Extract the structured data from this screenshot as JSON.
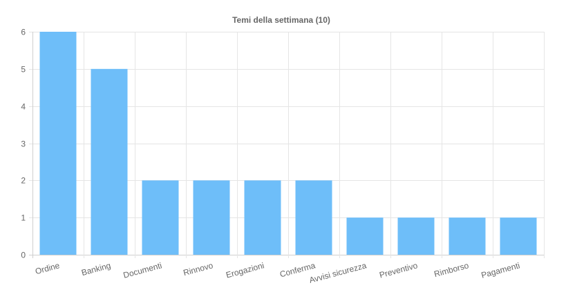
{
  "chart_data": {
    "type": "bar",
    "title": "Temi della settimana (10)",
    "categories": [
      "Ordine",
      "Banking",
      "Documenti",
      "Rinnovo",
      "Erogazioni",
      "Conferma",
      "Avvisi sicurezza",
      "Preventivo",
      "Rimborso",
      "Pagamenti"
    ],
    "values": [
      6,
      5,
      2,
      2,
      2,
      2,
      1,
      1,
      1,
      1
    ],
    "ylim": [
      0,
      6
    ],
    "yticks": [
      0,
      1,
      2,
      3,
      4,
      5,
      6
    ],
    "grid": true,
    "legend": "none",
    "bar_color": "#6ebef9"
  }
}
